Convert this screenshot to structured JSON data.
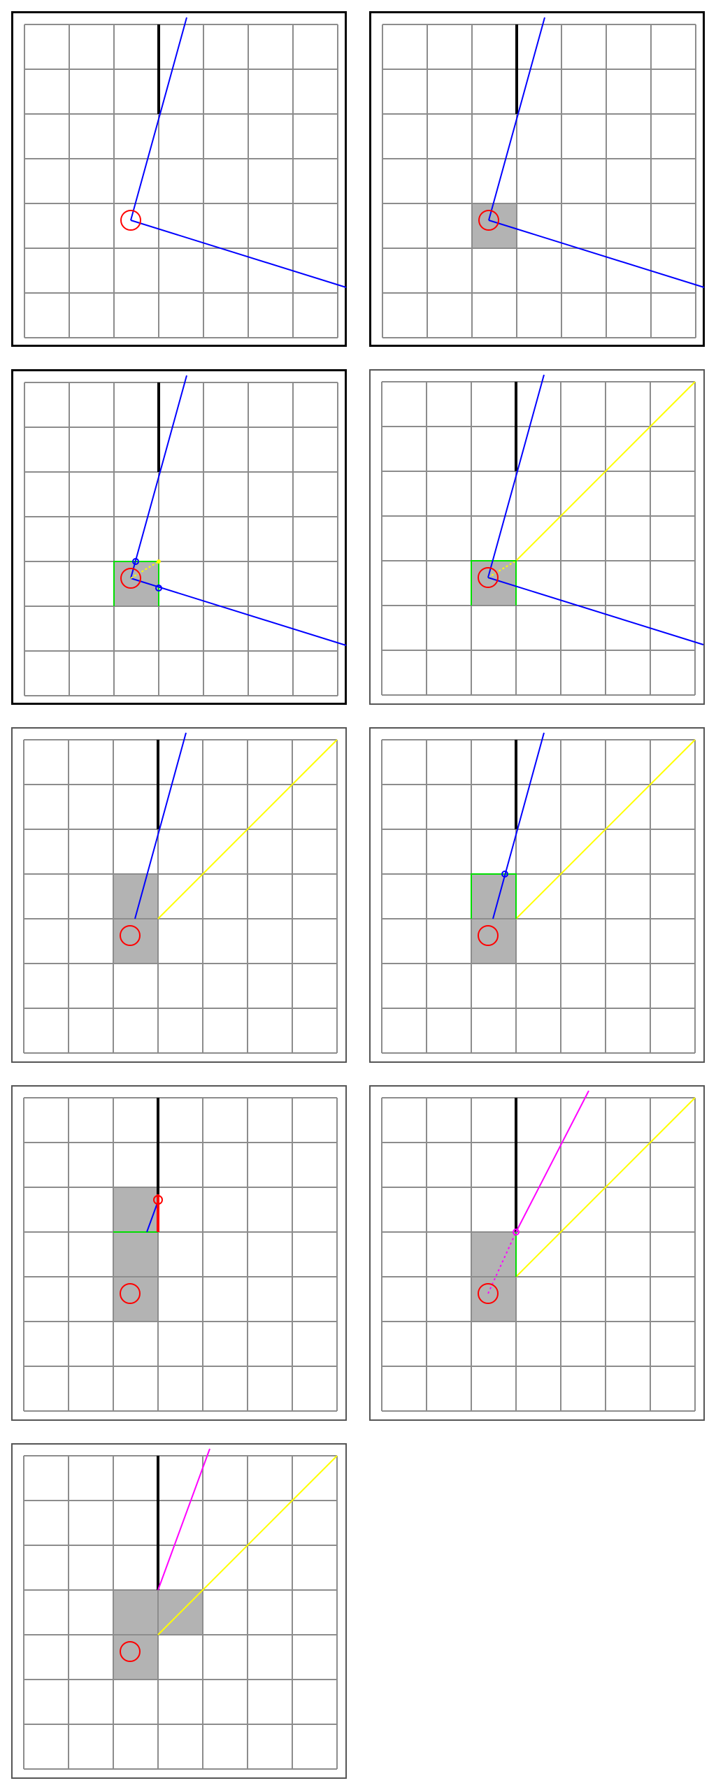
{
  "colors": {
    "background": "#ffffff",
    "grid_line": "#8c8c8c",
    "visited_cell": "#b3b3b3",
    "wall": "#000000",
    "origin_marker": "#ff0000",
    "boundary_ray": "#0000ff",
    "diagonal_ray": "#ffff00",
    "cell_edge_highlight": "#00dd00",
    "hit_segment": "#ff0000",
    "probe_ray": "#ff00ff",
    "intersection_point": "#0000ff"
  },
  "panels": [
    {
      "id": "step-1",
      "frame": "heavy",
      "shaded_cells": [],
      "show_yellow_diagonal": false,
      "blue_rays": "full",
      "probe": "none"
    },
    {
      "id": "step-2",
      "frame": "heavy",
      "shaded_cells": [
        [
          2,
          4
        ]
      ],
      "show_yellow_diagonal": false,
      "blue_rays": "full",
      "probe": "none"
    },
    {
      "id": "step-3",
      "frame": "heavy",
      "shaded_cells": [
        [
          2,
          4
        ]
      ],
      "show_yellow_diagonal": false,
      "blue_rays": "full-with-intersections",
      "probe": "none"
    },
    {
      "id": "step-4",
      "frame": "light",
      "shaded_cells": [
        [
          2,
          4
        ]
      ],
      "show_yellow_diagonal": true,
      "blue_rays": "full",
      "probe": "none"
    },
    {
      "id": "step-5",
      "frame": "light",
      "shaded_cells": [
        [
          2,
          3
        ],
        [
          2,
          4
        ]
      ],
      "show_yellow_diagonal": true,
      "blue_rays": "upper-only",
      "probe": "none"
    },
    {
      "id": "step-6",
      "frame": "light",
      "shaded_cells": [
        [
          2,
          3
        ],
        [
          2,
          4
        ]
      ],
      "show_yellow_diagonal": true,
      "blue_rays": "upper-with-intersection",
      "probe": "none"
    },
    {
      "id": "step-7",
      "frame": "light",
      "shaded_cells": [
        [
          2,
          2
        ],
        [
          2,
          3
        ],
        [
          2,
          4
        ]
      ],
      "show_yellow_diagonal": false,
      "blue_rays": "short-hit",
      "probe": "none"
    },
    {
      "id": "step-8",
      "frame": "light",
      "shaded_cells": [
        [
          2,
          3
        ],
        [
          2,
          4
        ]
      ],
      "show_yellow_diagonal": true,
      "blue_rays": "none",
      "probe": "magenta"
    },
    {
      "id": "step-9",
      "frame": "light",
      "shaded_cells": [
        [
          2,
          3
        ],
        [
          2,
          4
        ],
        [
          3,
          3
        ]
      ],
      "show_yellow_diagonal": true,
      "blue_rays": "none",
      "probe": "magenta-final"
    }
  ]
}
